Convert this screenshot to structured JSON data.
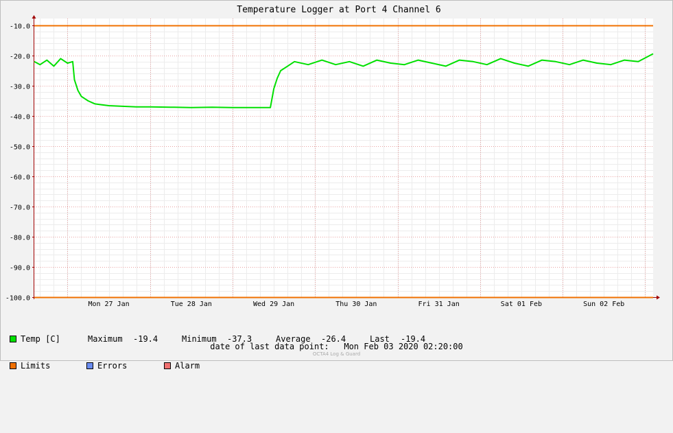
{
  "chart_data": {
    "type": "line",
    "title": "Temperature Logger at Port 4 Channel 6",
    "ylim": [
      -100.0,
      -10.0
    ],
    "yticks": [
      -10.0,
      -20.0,
      -30.0,
      -40.0,
      -50.0,
      -60.0,
      -70.0,
      -80.0,
      -90.0,
      -100.0
    ],
    "ytick_labels": [
      "-10.0",
      "-20.0",
      "-30.0",
      "-40.0",
      "-50.0",
      "-60.0",
      "-70.0",
      "-80.0",
      "-90.0",
      "-100.0"
    ],
    "xlim": [
      "2020-01-26 14:20",
      "2020-02-03 02:20"
    ],
    "xtick_labels": [
      "Mon 27 Jan",
      "Tue 28 Jan",
      "Wed 29 Jan",
      "Thu 30 Jan",
      "Fri 31 Jan",
      "Sat 01 Feb",
      "Sun 02 Feb"
    ],
    "grid": true,
    "limits": {
      "upper": -10.0,
      "lower": -100.0
    },
    "series": [
      {
        "name": "Temp [C]",
        "color": "#00e000",
        "x": [
          "2020-01-26 14:20",
          "2020-01-26 16:00",
          "2020-01-26 18:00",
          "2020-01-26 20:00",
          "2020-01-26 22:00",
          "2020-01-27 00:00",
          "2020-01-27 01:30",
          "2020-01-27 02:00",
          "2020-01-27 03:00",
          "2020-01-27 04:00",
          "2020-01-27 06:00",
          "2020-01-27 08:00",
          "2020-01-27 10:00",
          "2020-01-27 12:00",
          "2020-01-27 16:00",
          "2020-01-27 20:00",
          "2020-01-28 00:00",
          "2020-01-28 06:00",
          "2020-01-28 12:00",
          "2020-01-28 18:00",
          "2020-01-29 00:00",
          "2020-01-29 06:00",
          "2020-01-29 11:00",
          "2020-01-29 12:00",
          "2020-01-29 13:00",
          "2020-01-29 14:00",
          "2020-01-29 16:00",
          "2020-01-29 18:00",
          "2020-01-29 22:00",
          "2020-01-30 02:00",
          "2020-01-30 06:00",
          "2020-01-30 10:00",
          "2020-01-30 14:00",
          "2020-01-30 18:00",
          "2020-01-30 22:00",
          "2020-01-31 02:00",
          "2020-01-31 06:00",
          "2020-01-31 10:00",
          "2020-01-31 14:00",
          "2020-01-31 18:00",
          "2020-01-31 22:00",
          "2020-02-01 02:00",
          "2020-02-01 06:00",
          "2020-02-01 10:00",
          "2020-02-01 14:00",
          "2020-02-01 18:00",
          "2020-02-01 22:00",
          "2020-02-02 02:00",
          "2020-02-02 06:00",
          "2020-02-02 10:00",
          "2020-02-02 14:00",
          "2020-02-02 18:00",
          "2020-02-02 22:00",
          "2020-02-03 02:20"
        ],
        "y": [
          -22.0,
          -23.0,
          -21.5,
          -23.5,
          -21.0,
          -22.5,
          -22.0,
          -28.0,
          -31.5,
          -33.5,
          -35.0,
          -36.0,
          -36.3,
          -36.6,
          -36.8,
          -37.0,
          -37.0,
          -37.1,
          -37.2,
          -37.1,
          -37.2,
          -37.2,
          -37.2,
          -31.0,
          -27.5,
          -25.0,
          -23.5,
          -22.0,
          -23.0,
          -21.5,
          -23.0,
          -22.0,
          -23.5,
          -21.5,
          -22.5,
          -23.0,
          -21.5,
          -22.5,
          -23.5,
          -21.5,
          -22.0,
          -23.0,
          -21.0,
          -22.5,
          -23.5,
          -21.5,
          -22.0,
          -23.0,
          -21.5,
          -22.5,
          -23.0,
          -21.5,
          -22.0,
          -19.4
        ]
      },
      {
        "name": "Limits",
        "color": "#f07000"
      },
      {
        "name": "Errors",
        "color": "#6a8cf0"
      },
      {
        "name": "Alarm",
        "color": "#f07070"
      }
    ]
  },
  "stats": {
    "maximum_label": "Maximum",
    "maximum": "-19.4",
    "minimum_label": "Minimum",
    "minimum": "-37.3",
    "average_label": "Average",
    "average": "-26.4",
    "last_label": "Last",
    "last": "-19.4"
  },
  "footer": {
    "label": "date of last data point:",
    "value": "Mon Feb 03 2020 02:20:00"
  },
  "watermark": "OCTA4 Log & Guard"
}
